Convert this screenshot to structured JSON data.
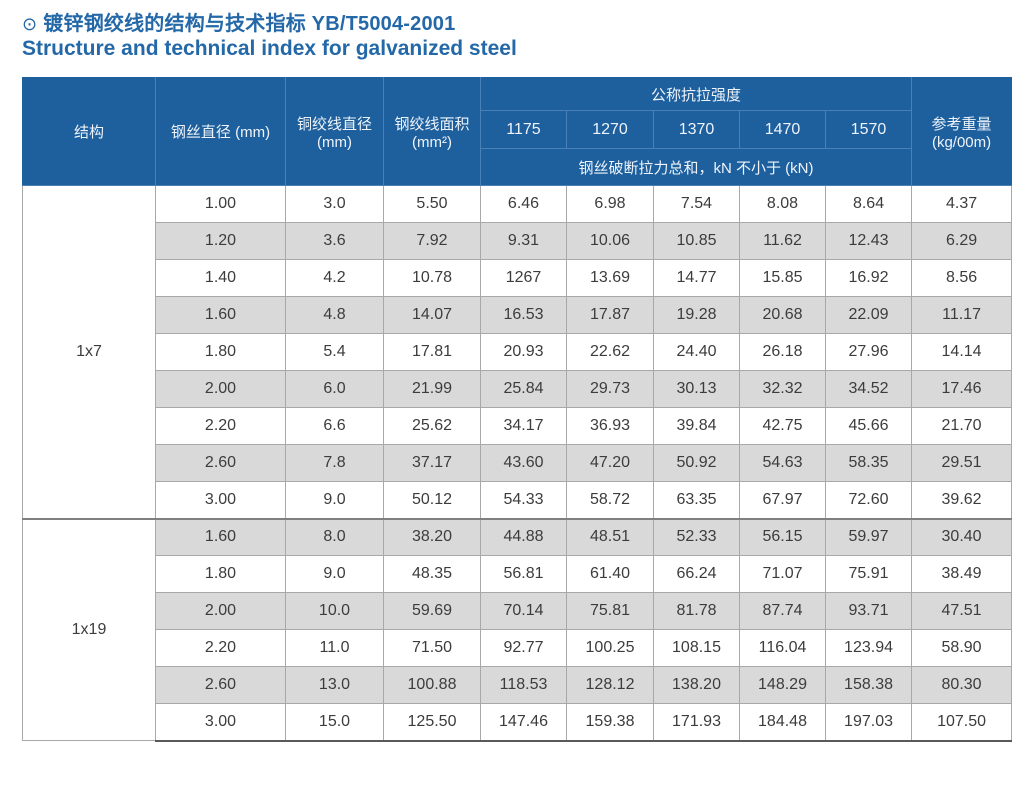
{
  "page": {
    "title_icon": "⊙",
    "title_zh": "镀锌钢绞线的结构与技术指标 YB/T5004-2001",
    "title_en": "Structure and technical index for galvanized steel"
  },
  "colors": {
    "title_blue": "#2468a8",
    "header_bg": "#1e5f9e",
    "header_divider": "#4a80b6",
    "row_alt_gray": "#d9d9d9",
    "grid_gray": "#a8a8a8"
  },
  "table": {
    "headers": {
      "structure": "结构",
      "wire_diameter": "钢丝直径 (mm)",
      "strand_diameter": [
        "铜绞线直径",
        "(mm)"
      ],
      "strand_area": [
        "钢绞线面积",
        "(mm²)"
      ],
      "tensile_group": "公称抗拉强度",
      "tensile_grades": [
        "1175",
        "1270",
        "1370",
        "1470",
        "1570"
      ],
      "breaking_force_note": "钢丝破断拉力总和，kN 不小于 (kN)",
      "ref_weight": [
        "参考重量",
        "(kg/00m)"
      ]
    },
    "groups": [
      {
        "structure": "1x7",
        "rows": [
          [
            "1.00",
            "3.0",
            "5.50",
            "6.46",
            "6.98",
            "7.54",
            "8.08",
            "8.64",
            "4.37"
          ],
          [
            "1.20",
            "3.6",
            "7.92",
            "9.31",
            "10.06",
            "10.85",
            "11.62",
            "12.43",
            "6.29"
          ],
          [
            "1.40",
            "4.2",
            "10.78",
            "1267",
            "13.69",
            "14.77",
            "15.85",
            "16.92",
            "8.56"
          ],
          [
            "1.60",
            "4.8",
            "14.07",
            "16.53",
            "17.87",
            "19.28",
            "20.68",
            "22.09",
            "11.17"
          ],
          [
            "1.80",
            "5.4",
            "17.81",
            "20.93",
            "22.62",
            "24.40",
            "26.18",
            "27.96",
            "14.14"
          ],
          [
            "2.00",
            "6.0",
            "21.99",
            "25.84",
            "29.73",
            "30.13",
            "32.32",
            "34.52",
            "17.46"
          ],
          [
            "2.20",
            "6.6",
            "25.62",
            "34.17",
            "36.93",
            "39.84",
            "42.75",
            "45.66",
            "21.70"
          ],
          [
            "2.60",
            "7.8",
            "37.17",
            "43.60",
            "47.20",
            "50.92",
            "54.63",
            "58.35",
            "29.51"
          ],
          [
            "3.00",
            "9.0",
            "50.12",
            "54.33",
            "58.72",
            "63.35",
            "67.97",
            "72.60",
            "39.62"
          ]
        ]
      },
      {
        "structure": "1x19",
        "rows": [
          [
            "1.60",
            "8.0",
            "38.20",
            "44.88",
            "48.51",
            "52.33",
            "56.15",
            "59.97",
            "30.40"
          ],
          [
            "1.80",
            "9.0",
            "48.35",
            "56.81",
            "61.40",
            "66.24",
            "71.07",
            "75.91",
            "38.49"
          ],
          [
            "2.00",
            "10.0",
            "59.69",
            "70.14",
            "75.81",
            "81.78",
            "87.74",
            "93.71",
            "47.51"
          ],
          [
            "2.20",
            "11.0",
            "71.50",
            "92.77",
            "100.25",
            "108.15",
            "116.04",
            "123.94",
            "58.90"
          ],
          [
            "2.60",
            "13.0",
            "100.88",
            "118.53",
            "128.12",
            "138.20",
            "148.29",
            "158.38",
            "80.30"
          ],
          [
            "3.00",
            "15.0",
            "125.50",
            "147.46",
            "159.38",
            "171.93",
            "184.48",
            "197.03",
            "107.50"
          ]
        ]
      }
    ]
  }
}
